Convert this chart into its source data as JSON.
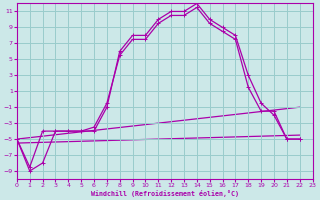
{
  "xlabel": "Windchill (Refroidissement éolien,°C)",
  "background_color": "#cce8e8",
  "grid_color": "#99cccc",
  "line_color": "#aa00aa",
  "xlim": [
    0,
    23
  ],
  "ylim": [
    -10,
    12
  ],
  "yticks": [
    -9,
    -7,
    -5,
    -3,
    -1,
    1,
    3,
    5,
    7,
    9,
    11
  ],
  "xticks": [
    0,
    1,
    2,
    3,
    4,
    5,
    6,
    7,
    8,
    9,
    10,
    11,
    12,
    13,
    14,
    15,
    16,
    17,
    18,
    19,
    20,
    21,
    22,
    23
  ],
  "curve1_x": [
    0,
    1,
    2,
    3,
    4,
    5,
    6,
    7,
    8,
    9,
    10,
    11,
    12,
    13,
    14,
    15,
    16,
    17,
    18,
    19,
    20,
    21,
    22
  ],
  "curve1_y": [
    -5,
    -9,
    -8,
    -4,
    -4,
    -4,
    -4,
    -1,
    6,
    8,
    8,
    10,
    11,
    11,
    12,
    10,
    9,
    8,
    3,
    -0.5,
    -2,
    -5,
    -5
  ],
  "curve2_x": [
    0,
    1,
    2,
    3,
    4,
    5,
    6,
    7,
    8,
    9,
    10,
    11,
    12,
    13,
    14,
    15,
    16,
    17,
    18,
    19,
    20,
    21,
    22
  ],
  "curve2_y": [
    -5,
    -8.5,
    -4,
    -4,
    -4,
    -4,
    -3.5,
    -0.5,
    5.5,
    7.5,
    7.5,
    9.5,
    10.5,
    10.5,
    11.5,
    9.5,
    8.5,
    7.5,
    1.5,
    -1.5,
    -1.5,
    -5,
    -5
  ],
  "line3_x": [
    0,
    22
  ],
  "line3_y": [
    -5.0,
    -1.0
  ],
  "line4_x": [
    0,
    22
  ],
  "line4_y": [
    -5.5,
    -4.5
  ]
}
